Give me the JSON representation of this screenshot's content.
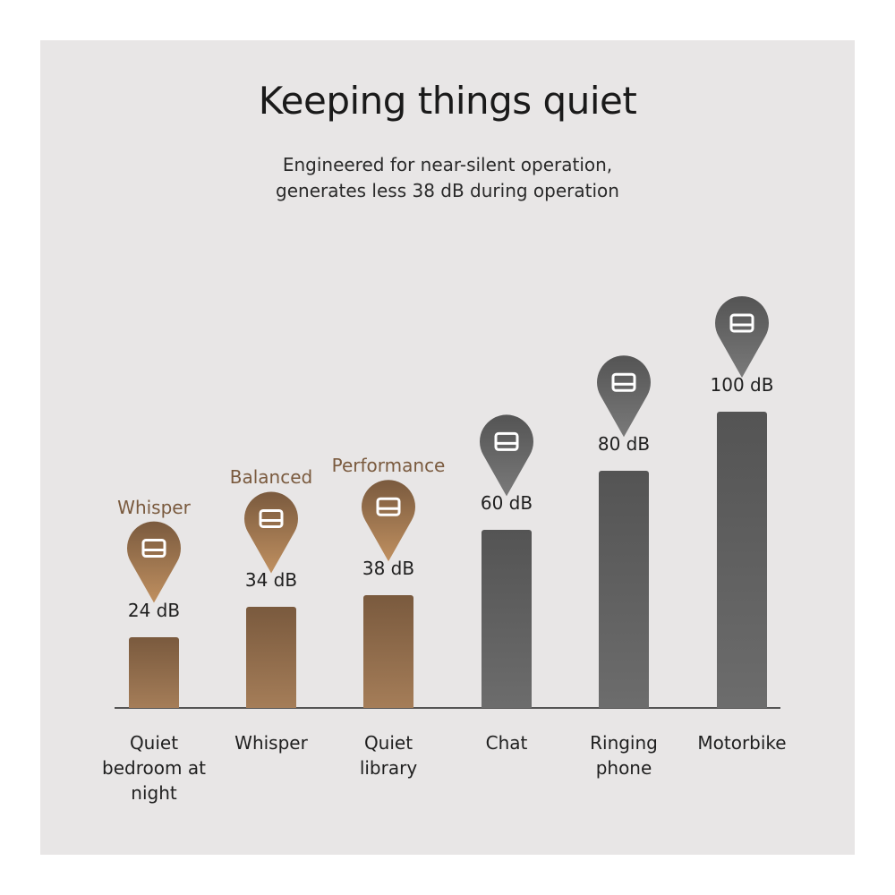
{
  "chart_data": {
    "type": "bar",
    "title": "Keeping things quiet",
    "subtitle": "Engineered for near-silent operation, generates less 38 dB during operation",
    "categories": [
      "Quiet bedroom at night",
      "Whisper",
      "Quiet library",
      "Chat",
      "Ringing phone",
      "Motorbike"
    ],
    "values": [
      24,
      34,
      38,
      60,
      80,
      100
    ],
    "value_labels": [
      "24 dB",
      "34 dB",
      "38 dB",
      "60 dB",
      "80 dB",
      "100 dB"
    ],
    "mode_labels": [
      "Whisper",
      "Balanced",
      "Performance"
    ],
    "colors": [
      "#7a5a3e",
      "#7a5a3e",
      "#7a5a3e",
      "#545454",
      "#545454",
      "#545454"
    ],
    "ylim": [
      0,
      100
    ]
  }
}
